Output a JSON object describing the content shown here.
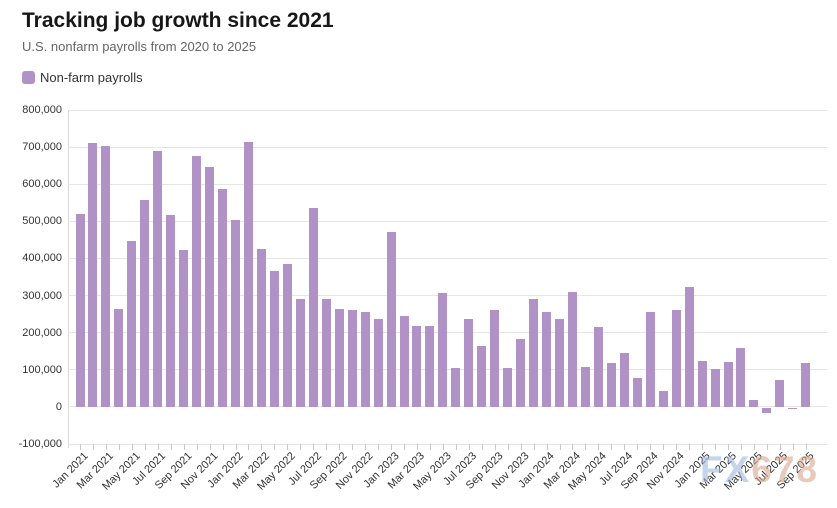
{
  "header": {
    "title": "Tracking job growth since 2021",
    "subtitle": "U.S. nonfarm payrolls from 2020 to 2025"
  },
  "legend": {
    "label": "Non-farm payrolls",
    "swatch_color": "#b192c6"
  },
  "watermark": {
    "part1": "FX",
    "part2": "678"
  },
  "colors": {
    "bar": "#b192c6",
    "grid": "#e6e6e6",
    "axis_text": "#333333",
    "subtitle_text": "#666666"
  },
  "chart_data": {
    "type": "bar",
    "title": "Tracking job growth since 2021",
    "subtitle": "U.S. nonfarm payrolls from 2020 to 2025",
    "series_name": "Non-farm payrolls",
    "unit": "monthly change in U.S. nonfarm payrolls (persons)",
    "legend_position": "top-left",
    "grid": true,
    "ylim": [
      -100000,
      800000
    ],
    "y_tick_interval": 100000,
    "y_ticks": [
      "800,000",
      "700,000",
      "600,000",
      "500,000",
      "400,000",
      "300,000",
      "200,000",
      "100,000",
      "0",
      "-100,000"
    ],
    "x_labels_shown_every": 2,
    "categories": [
      "Jan 2021",
      "Feb 2021",
      "Mar 2021",
      "Apr 2021",
      "May 2021",
      "Jun 2021",
      "Jul 2021",
      "Aug 2021",
      "Sep 2021",
      "Oct 2021",
      "Nov 2021",
      "Dec 2021",
      "Jan 2022",
      "Feb 2022",
      "Mar 2022",
      "Apr 2022",
      "May 2022",
      "Jun 2022",
      "Jul 2022",
      "Aug 2022",
      "Sep 2022",
      "Oct 2022",
      "Nov 2022",
      "Dec 2022",
      "Jan 2023",
      "Feb 2023",
      "Mar 2023",
      "Apr 2023",
      "May 2023",
      "Jun 2023",
      "Jul 2023",
      "Aug 2023",
      "Sep 2023",
      "Oct 2023",
      "Nov 2023",
      "Dec 2023",
      "Jan 2024",
      "Feb 2024",
      "Mar 2024",
      "Apr 2024",
      "May 2024",
      "Jun 2024",
      "Jul 2024",
      "Aug 2024",
      "Sep 2024",
      "Oct 2024",
      "Nov 2024",
      "Dec 2024",
      "Jan 2025",
      "Feb 2025",
      "Mar 2025",
      "Apr 2025",
      "May 2025",
      "Jun 2025",
      "Jul 2025",
      "Aug 2025",
      "Sep 2025"
    ],
    "values": [
      520000,
      710000,
      704000,
      263000,
      447000,
      557000,
      689000,
      517000,
      424000,
      677000,
      647000,
      588000,
      504000,
      714000,
      426000,
      367000,
      384000,
      290000,
      537000,
      292000,
      263000,
      261000,
      256000,
      236000,
      472000,
      246000,
      217000,
      217000,
      306000,
      105000,
      236000,
      165000,
      262000,
      105000,
      182000,
      290000,
      256000,
      236000,
      310000,
      108000,
      216000,
      118000,
      144000,
      78000,
      255000,
      44000,
      261000,
      323000,
      125000,
      102000,
      120000,
      158000,
      19000,
      -13000,
      72000,
      -4000,
      119000
    ]
  }
}
